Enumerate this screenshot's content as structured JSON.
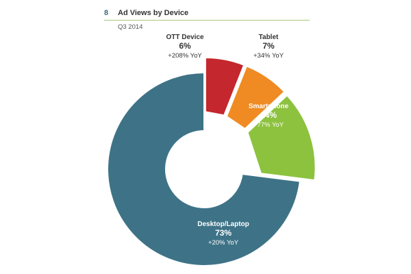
{
  "header": {
    "page_number": "8",
    "title": "Ad Views by Device",
    "subtitle": "Q3 2014"
  },
  "colors": {
    "accent_rule": "#a7c77a",
    "Desktop/Laptop": "#3e7387",
    "Smartphone": "#8dc23f",
    "Tablet": "#ef8b22",
    "OTT Device": "#c4272d"
  },
  "chart_data": {
    "type": "pie",
    "title": "Ad Views by Device",
    "subtitle": "Q3 2014",
    "donut": true,
    "exploded": [
      "Smartphone",
      "Tablet",
      "OTT Device"
    ],
    "slices": [
      {
        "label": "Desktop/Laptop",
        "value": 73,
        "pct_text": "73%",
        "yoy": "+20% YoY"
      },
      {
        "label": "Smartphone",
        "value": 14,
        "pct_text": "14%",
        "yoy": "+77% YoY"
      },
      {
        "label": "Tablet",
        "value": 7,
        "pct_text": "7%",
        "yoy": "+34% YoY"
      },
      {
        "label": "OTT Device",
        "value": 6,
        "pct_text": "6%",
        "yoy": "+208% YoY"
      }
    ]
  }
}
